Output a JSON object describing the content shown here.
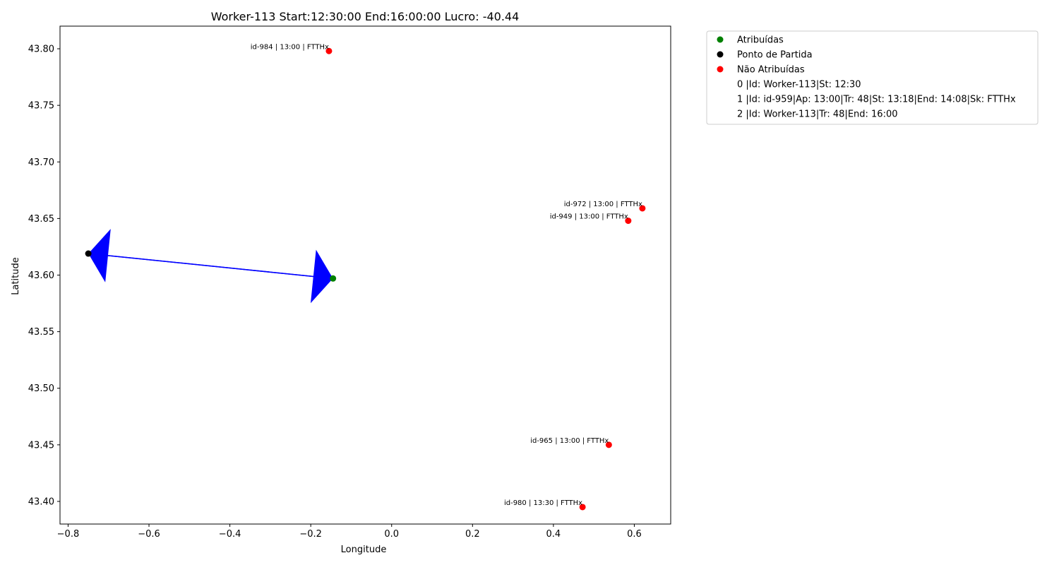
{
  "chart_data": {
    "type": "scatter",
    "title": "Worker-113 Start:12:30:00 End:16:00:00 Lucro: -40.44",
    "xlabel": "Longitude",
    "ylabel": "Latitude",
    "xlim": [
      -0.82,
      0.69
    ],
    "ylim": [
      43.38,
      43.82
    ],
    "xticks": [
      -0.8,
      -0.6,
      -0.4,
      -0.2,
      0.0,
      0.2,
      0.4,
      0.6
    ],
    "xtick_labels": [
      "−0.8",
      "−0.6",
      "−0.4",
      "−0.2",
      "0.0",
      "0.2",
      "0.4",
      "0.6"
    ],
    "yticks": [
      43.4,
      43.45,
      43.5,
      43.55,
      43.6,
      43.65,
      43.7,
      43.75,
      43.8
    ],
    "ytick_labels": [
      "43.40",
      "43.45",
      "43.50",
      "43.55",
      "43.60",
      "43.65",
      "43.70",
      "43.75",
      "43.80"
    ],
    "grid": false,
    "legend_position": "outside-top-right",
    "colors": {
      "assigned": "#008000",
      "start": "#000000",
      "unassigned": "#ff0000",
      "route": "#0000ff"
    },
    "series": [
      {
        "name": "Atribuídas",
        "color": "#008000",
        "points": [
          {
            "x": -0.145,
            "y": 43.597
          }
        ]
      },
      {
        "name": "Ponto de Partida",
        "color": "#000000",
        "points": [
          {
            "x": -0.75,
            "y": 43.619
          }
        ]
      },
      {
        "name": "Não Atribuídas",
        "color": "#ff0000",
        "points": [
          {
            "x": -0.155,
            "y": 43.798,
            "label": "id-984 | 13:00 | FTTHx"
          },
          {
            "x": 0.62,
            "y": 43.659,
            "label": "id-972 | 13:00 | FTTHx"
          },
          {
            "x": 0.585,
            "y": 43.648,
            "label": "id-949 | 13:00 | FTTHx"
          },
          {
            "x": 0.537,
            "y": 43.45,
            "label": "id-965 | 13:00 | FTTHx"
          },
          {
            "x": 0.472,
            "y": 43.395,
            "label": "id-980 | 13:30 | FTTHx"
          }
        ]
      }
    ],
    "route": [
      {
        "from": {
          "x": -0.75,
          "y": 43.619
        },
        "to": {
          "x": -0.145,
          "y": 43.597
        }
      },
      {
        "from": {
          "x": -0.145,
          "y": 43.597
        },
        "to": {
          "x": -0.75,
          "y": 43.619
        }
      }
    ],
    "legend_notes": [
      "0 |Id: Worker-113|St: 12:30",
      "1 |Id: id-959|Ap: 13:00|Tr: 48|St: 13:18|End: 14:08|Sk: FTTHx",
      "2 |Id: Worker-113|Tr: 48|End: 16:00"
    ]
  }
}
